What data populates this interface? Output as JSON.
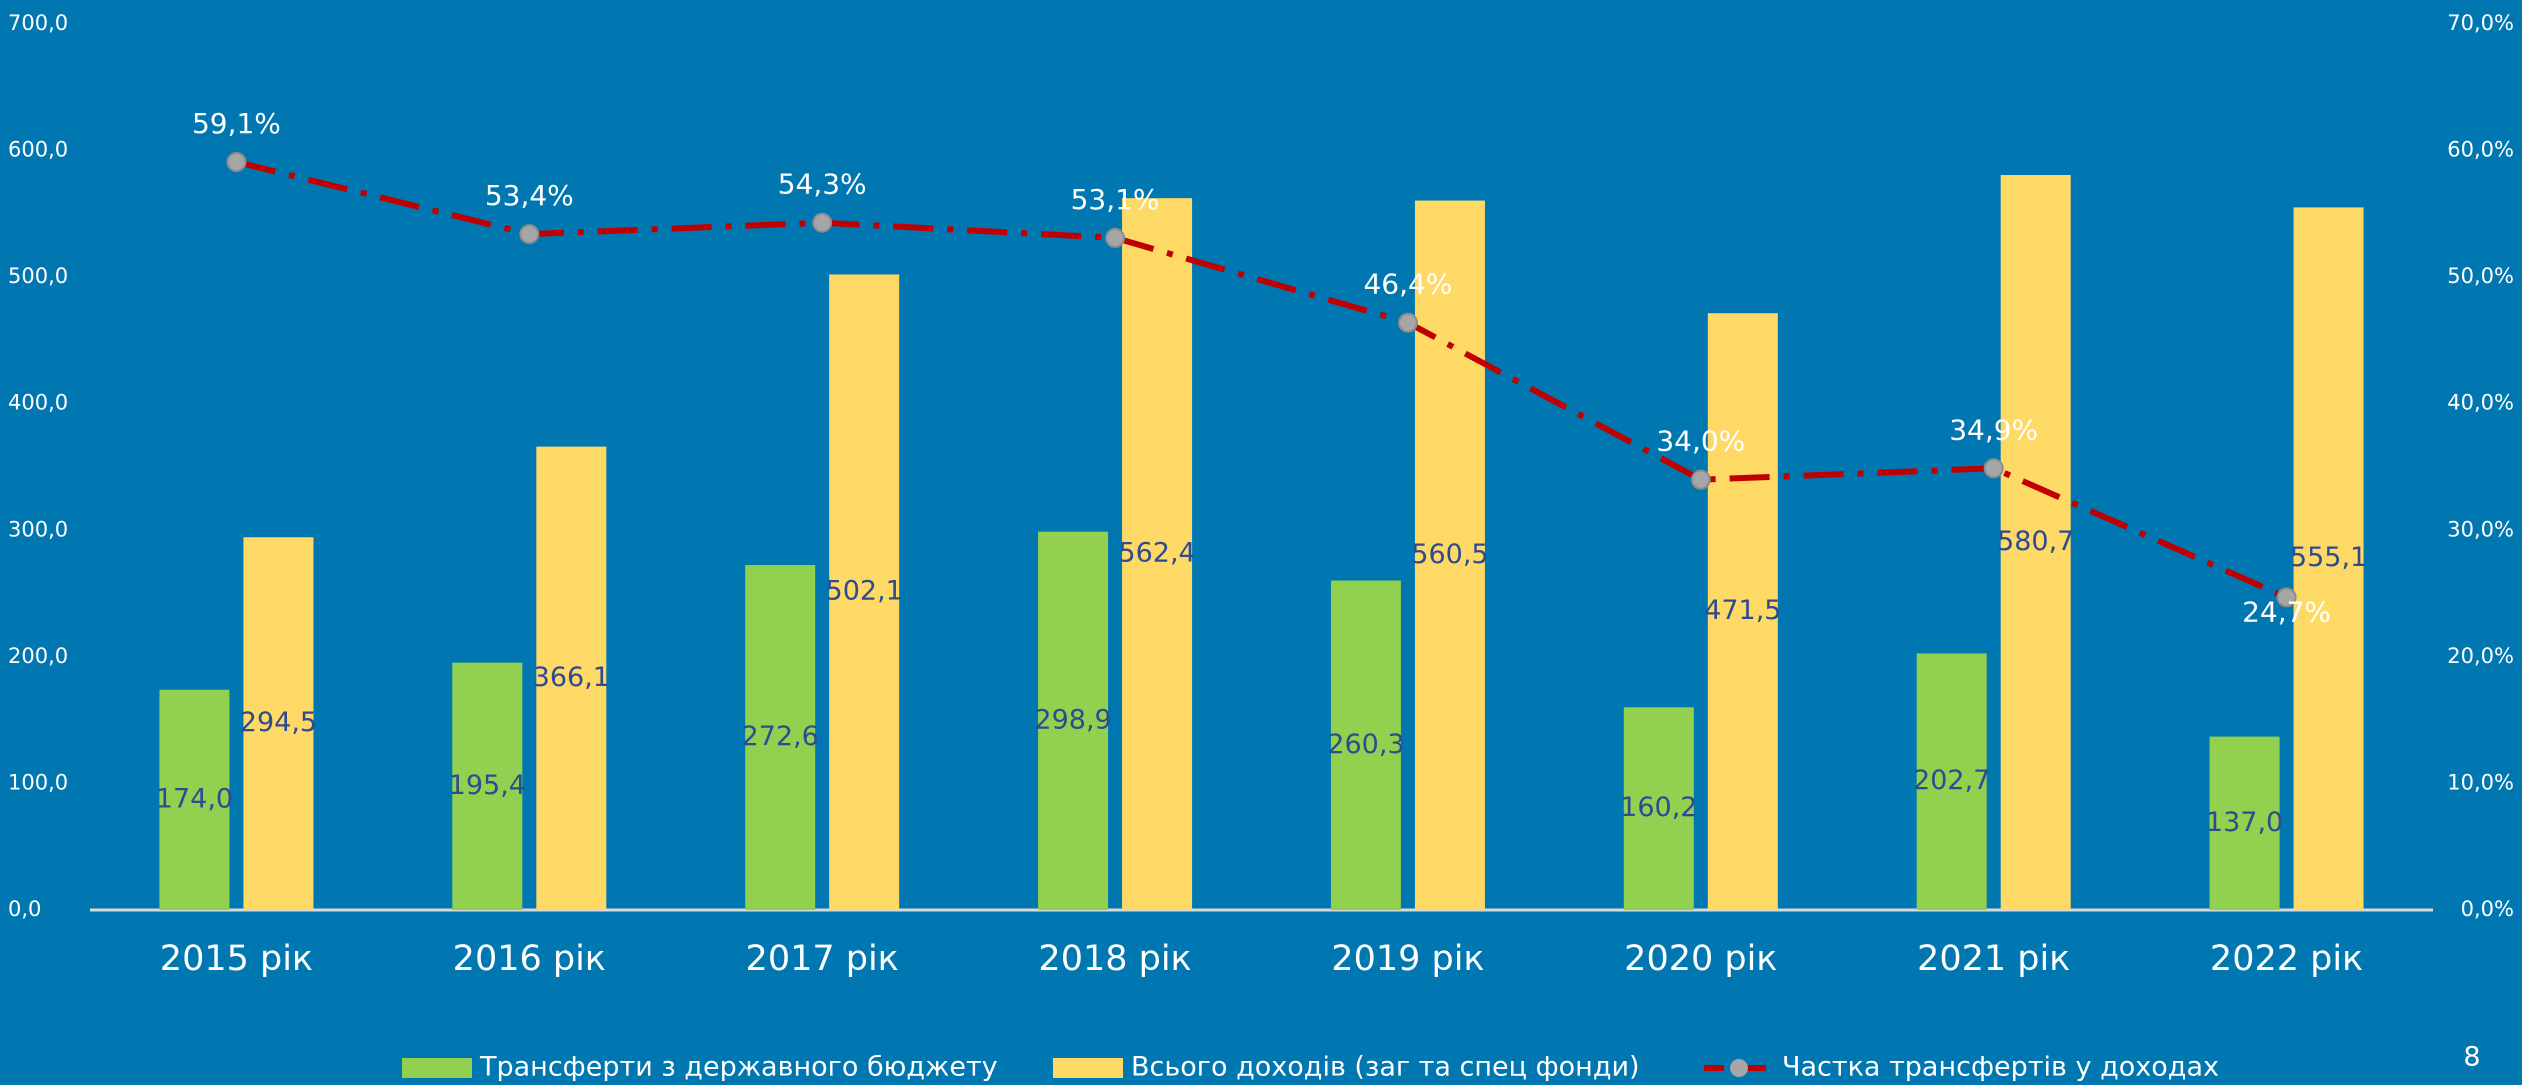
{
  "chart_data": {
    "type": "bar",
    "categories": [
      "2015 рік",
      "2016 рік",
      "2017 рік",
      "2018 рік",
      "2019 рік",
      "2020 рік",
      "2021 рік",
      "2022 рік"
    ],
    "series": [
      {
        "name": "Трансферти з державного бюджету",
        "color": "#92d050",
        "type": "bar",
        "values": [
          174.0,
          195.4,
          272.6,
          298.9,
          260.3,
          160.2,
          202.7,
          137.0
        ],
        "value_labels": [
          "174,0",
          "195,4",
          "272,6",
          "298,9",
          "260,3",
          "160,2",
          "202,7",
          "137,0"
        ]
      },
      {
        "name": "Всього доходів (заг та спец фонди)",
        "color": "#ffd966",
        "type": "bar",
        "values": [
          294.5,
          366.1,
          502.1,
          562.4,
          560.5,
          471.5,
          580.7,
          555.1
        ],
        "value_labels": [
          "294,5",
          "366,1",
          "502,1",
          "562,4",
          "560,5",
          "471,5",
          "580,7",
          "555,1"
        ]
      },
      {
        "name": "Частка трансфертів у доходах",
        "color": "#c00000",
        "type": "line",
        "axis": "y2",
        "values": [
          59.1,
          53.4,
          54.3,
          53.1,
          46.4,
          34.0,
          34.9,
          24.7
        ],
        "value_labels": [
          "59,1%",
          "53,4%",
          "54,3%",
          "53,1%",
          "46,4%",
          "34,0%",
          "34,9%",
          "24,7%"
        ]
      }
    ],
    "ylim": [
      0,
      700
    ],
    "yticks": [
      {
        "value": 0,
        "label": "0,0"
      },
      {
        "value": 100,
        "label": "100,0"
      },
      {
        "value": 200,
        "label": "200,0"
      },
      {
        "value": 300,
        "label": "300,0"
      },
      {
        "value": 400,
        "label": "400,0"
      },
      {
        "value": 500,
        "label": "500,0"
      },
      {
        "value": 600,
        "label": "600,0"
      },
      {
        "value": 700,
        "label": "700,0"
      }
    ],
    "y2lim": [
      0,
      70
    ],
    "y2ticks": [
      {
        "value": 0,
        "label": "0,0%"
      },
      {
        "value": 10,
        "label": "10,0%"
      },
      {
        "value": 20,
        "label": "20,0%"
      },
      {
        "value": 30,
        "label": "30,0%"
      },
      {
        "value": 40,
        "label": "40,0%"
      },
      {
        "value": 50,
        "label": "50,0%"
      },
      {
        "value": 60,
        "label": "60,0%"
      },
      {
        "value": 70,
        "label": "70,0%"
      }
    ],
    "grid": false,
    "legend": "bottom"
  },
  "page_number": "8"
}
